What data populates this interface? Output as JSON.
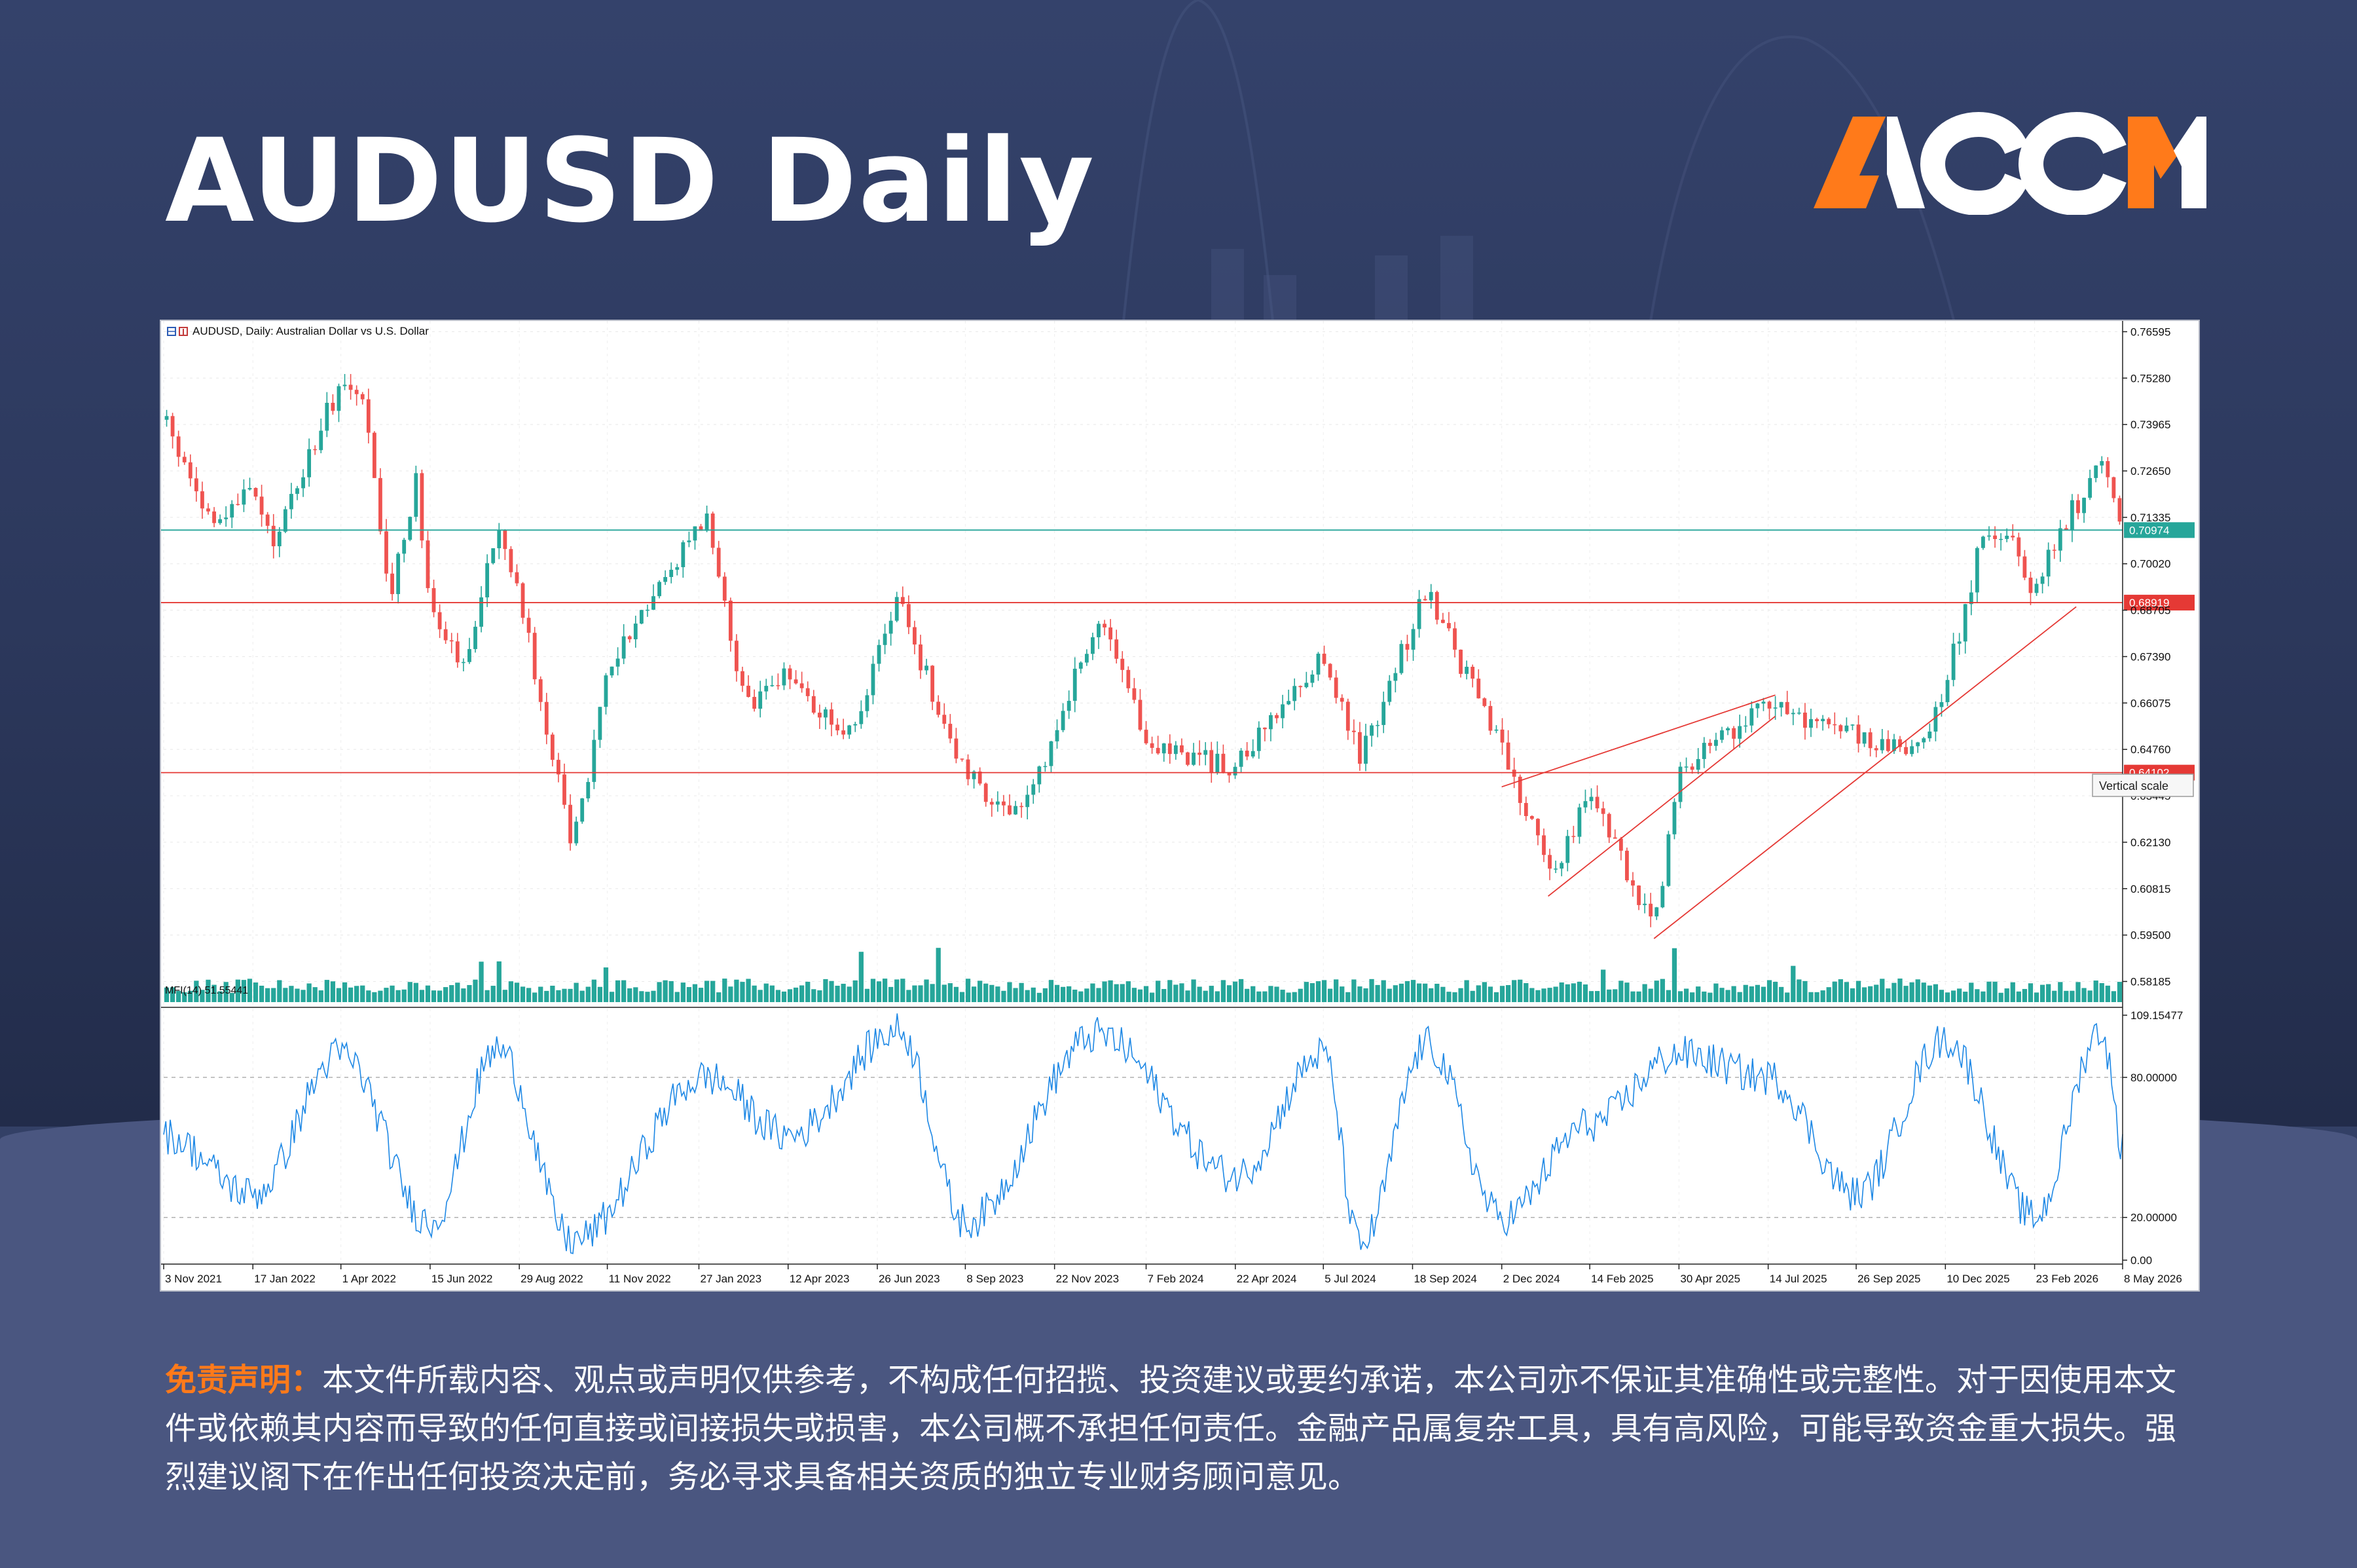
{
  "page": {
    "title": "AUDUSD Daily",
    "logo_text": "ACCM",
    "disclaimer_label": "免责声明：",
    "disclaimer_text": "本文件所载内容、观点或声明仅供参考，不构成任何招揽、投资建议或要约承诺，本公司亦不保证其准确性或完整性。对于因使用本文件或依赖其内容而导致的任何直接或间接损失或损害，本公司概不承担任何责任。金融产品属复杂工具，具有高风险，可能导致资金重大损失。强烈建议阁下在作出任何投资决定前，务必寻求具备相关资质的独立专业财务顾问意见。"
  },
  "colors": {
    "background": "#334066",
    "accent": "#ff7a1a",
    "candle_up": "#26a69a",
    "candle_down": "#ef5350",
    "mfi_line": "#1e88e5",
    "support_line": "#e53935",
    "current_line": "#26a69a"
  },
  "chart_data": {
    "type": "candlestick",
    "symbol_label": "AUDUSD, Daily:  Australian Dollar vs U.S. Dollar",
    "price_axis": {
      "ticks": [
        "0.76595",
        "0.75280",
        "0.73965",
        "0.72650",
        "0.71335",
        "0.70020",
        "0.68705",
        "0.67390",
        "0.66075",
        "0.64760",
        "0.63445",
        "0.62130",
        "0.60815",
        "0.59500",
        "0.58185"
      ],
      "range": [
        0.576,
        0.769
      ]
    },
    "x_axis_labels": [
      "3 Nov 2021",
      "17 Jan 2022",
      "1 Apr 2022",
      "15 Jun 2022",
      "29 Aug 2022",
      "11 Nov 2022",
      "27 Jan 2023",
      "12 Apr 2023",
      "26 Jun 2023",
      "8 Sep 2023",
      "22 Nov 2023",
      "7 Feb 2024",
      "22 Apr 2024",
      "5 Jul 2024",
      "18 Sep 2024",
      "2 Dec 2024",
      "14 Feb 2025",
      "30 Apr 2025",
      "14 Jul 2025",
      "26 Sep 2025",
      "10 Dec 2025",
      "23 Feb 2026",
      "8 May 2026"
    ],
    "approx_close_path": [
      {
        "date": "3 Nov 2021",
        "close": 0.741
      },
      {
        "date": "15 Dec 2021",
        "close": 0.71
      },
      {
        "date": "17 Jan 2022",
        "close": 0.722
      },
      {
        "date": "1 Feb 2022",
        "close": 0.705
      },
      {
        "date": "1 Apr 2022",
        "close": 0.752
      },
      {
        "date": "20 Apr 2022",
        "close": 0.745
      },
      {
        "date": "12 May 2022",
        "close": 0.69
      },
      {
        "date": "3 Jun 2022",
        "close": 0.724
      },
      {
        "date": "15 Jun 2022",
        "close": 0.69
      },
      {
        "date": "14 Jul 2022",
        "close": 0.671
      },
      {
        "date": "11 Aug 2022",
        "close": 0.712
      },
      {
        "date": "29 Aug 2022",
        "close": 0.69
      },
      {
        "date": "13 Oct 2022",
        "close": 0.619
      },
      {
        "date": "11 Nov 2022",
        "close": 0.67
      },
      {
        "date": "14 Dec 2022",
        "close": 0.69
      },
      {
        "date": "2 Feb 2023",
        "close": 0.713
      },
      {
        "date": "8 Mar 2023",
        "close": 0.659
      },
      {
        "date": "12 Apr 2023",
        "close": 0.67
      },
      {
        "date": "31 May 2023",
        "close": 0.65
      },
      {
        "date": "14 Jul 2023",
        "close": 0.689
      },
      {
        "date": "8 Sep 2023",
        "close": 0.64
      },
      {
        "date": "26 Oct 2023",
        "close": 0.628
      },
      {
        "date": "28 Dec 2023",
        "close": 0.685
      },
      {
        "date": "7 Feb 2024",
        "close": 0.65
      },
      {
        "date": "22 Apr 2024",
        "close": 0.642
      },
      {
        "date": "5 Jul 2024",
        "close": 0.675
      },
      {
        "date": "5 Aug 2024",
        "close": 0.645
      },
      {
        "date": "30 Sep 2024",
        "close": 0.693
      },
      {
        "date": "2 Dec 2024",
        "close": 0.647
      },
      {
        "date": "13 Jan 2025",
        "close": 0.612
      },
      {
        "date": "14 Feb 2025",
        "close": 0.636
      },
      {
        "date": "9 Apr 2025",
        "close": 0.595
      },
      {
        "date": "30 Apr 2025",
        "close": 0.641
      },
      {
        "date": "14 Jul 2025",
        "close": 0.66
      },
      {
        "date": "26 Sep 2025",
        "close": 0.652
      },
      {
        "date": "21 Nov 2025",
        "close": 0.647
      },
      {
        "date": "10 Dec 2025",
        "close": 0.665
      },
      {
        "date": "8 Jan 2026",
        "close": 0.705
      },
      {
        "date": "2 Feb 2026",
        "close": 0.71
      },
      {
        "date": "23 Feb 2026",
        "close": 0.692
      },
      {
        "date": "16 Mar 2026",
        "close": 0.71
      },
      {
        "date": "20 Apr 2026",
        "close": 0.727
      },
      {
        "date": "8 May 2026",
        "close": 0.70974
      }
    ],
    "horizontal_lines": [
      {
        "price": 0.70974,
        "label": "0.70974",
        "color": "#26a69a"
      },
      {
        "price": 0.68919,
        "label": "0.68919",
        "color": "#e53935"
      },
      {
        "price": 0.64102,
        "label": "0.64102",
        "color": "#e53935"
      }
    ],
    "trend_lines": [
      {
        "from": {
          "date": "2 Dec 2024",
          "price": 0.637
        },
        "to": {
          "date": "20 Jul 2025",
          "price": 0.663
        }
      },
      {
        "from": {
          "date": "10 Jan 2025",
          "price": 0.606
        },
        "to": {
          "date": "20 Jul 2025",
          "price": 0.657
        }
      },
      {
        "from": {
          "date": "9 Apr 2025",
          "price": 0.594
        },
        "to": {
          "date": "30 Mar 2026",
          "price": 0.688
        }
      }
    ],
    "tooltip": "Vertical scale",
    "indicator": {
      "name": "MFI(14)",
      "value": "51.55441",
      "label": "MFI(14) 51.55441",
      "ticks": [
        "109.15477",
        "80.00000",
        "20.00000",
        "0.00"
      ],
      "range": [
        0,
        110
      ],
      "levels": [
        80,
        20
      ],
      "approx_path": [
        {
          "date": "3 Nov 2021",
          "mfi": 55
        },
        {
          "date": "17 Jan 2022",
          "mfi": 30
        },
        {
          "date": "1 Apr 2022",
          "mfi": 90
        },
        {
          "date": "15 Jun 2022",
          "mfi": 18
        },
        {
          "date": "11 Aug 2022",
          "mfi": 92
        },
        {
          "date": "13 Oct 2022",
          "mfi": 10
        },
        {
          "date": "2 Feb 2023",
          "mfi": 80
        },
        {
          "date": "12 Apr 2023",
          "mfi": 55
        },
        {
          "date": "14 Jul 2023",
          "mfi": 100
        },
        {
          "date": "8 Sep 2023",
          "mfi": 18
        },
        {
          "date": "28 Dec 2023",
          "mfi": 98
        },
        {
          "date": "22 Apr 2024",
          "mfi": 38
        },
        {
          "date": "5 Jul 2024",
          "mfi": 90
        },
        {
          "date": "5 Aug 2024",
          "mfi": 8
        },
        {
          "date": "30 Sep 2024",
          "mfi": 94
        },
        {
          "date": "2 Dec 2024",
          "mfi": 20
        },
        {
          "date": "14 Feb 2025",
          "mfi": 60
        },
        {
          "date": "30 Apr 2025",
          "mfi": 90
        },
        {
          "date": "14 Jul 2025",
          "mfi": 80
        },
        {
          "date": "26 Sep 2025",
          "mfi": 30
        },
        {
          "date": "10 Dec 2025",
          "mfi": 96
        },
        {
          "date": "23 Feb 2026",
          "mfi": 20
        },
        {
          "date": "20 Apr 2026",
          "mfi": 100
        },
        {
          "date": "8 May 2026",
          "mfi": 51.55
        }
      ]
    }
  }
}
